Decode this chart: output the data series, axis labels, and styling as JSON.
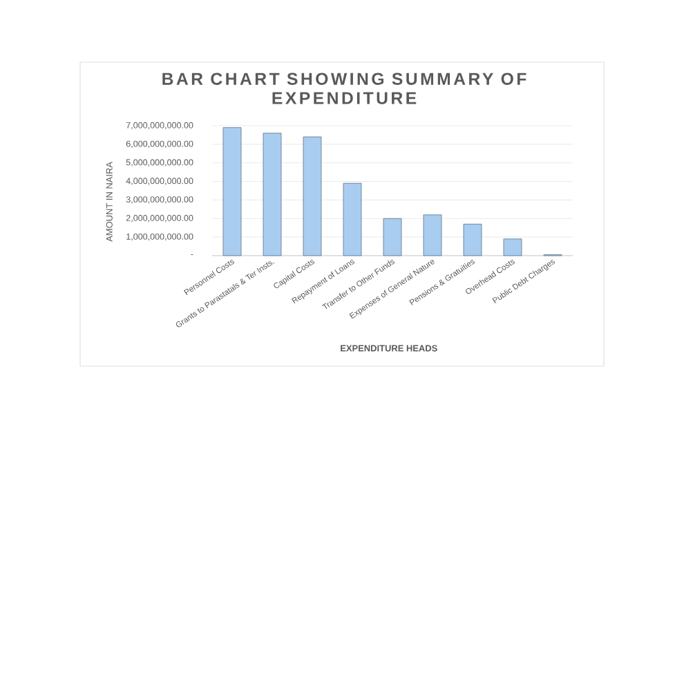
{
  "chart_data": {
    "type": "bar",
    "title": "BAR CHART SHOWING SUMMARY OF EXPENDITURE",
    "xlabel": "EXPENDITURE HEADS",
    "ylabel": "AMOUNT IN NAIRA",
    "categories": [
      "Personnel Costs",
      "Grants to Parastatals & Ter Insts.",
      "Capital Costs",
      "Repayment of Loans",
      "Transfer to Other Funds",
      "Expenses of General Nature",
      "Pensions & Gratuities",
      "Overhead Costs",
      "Public Debt Charges"
    ],
    "values": [
      6900000000,
      6600000000,
      6400000000,
      3900000000,
      2000000000,
      2200000000,
      1700000000,
      900000000,
      50000000
    ],
    "color": "#a9cdf0",
    "ylim": [
      0,
      7000000000
    ],
    "yticks": [
      {
        "value": 0,
        "label": "-"
      },
      {
        "value": 1000000000,
        "label": "1,000,000,000.00"
      },
      {
        "value": 2000000000,
        "label": "2,000,000,000.00"
      },
      {
        "value": 3000000000,
        "label": "3,000,000,000.00"
      },
      {
        "value": 4000000000,
        "label": "4,000,000,000.00"
      },
      {
        "value": 5000000000,
        "label": "5,000,000,000.00"
      },
      {
        "value": 6000000000,
        "label": "6,000,000,000.00"
      },
      {
        "value": 7000000000,
        "label": "7,000,000,000.00"
      }
    ],
    "grid": "y"
  }
}
